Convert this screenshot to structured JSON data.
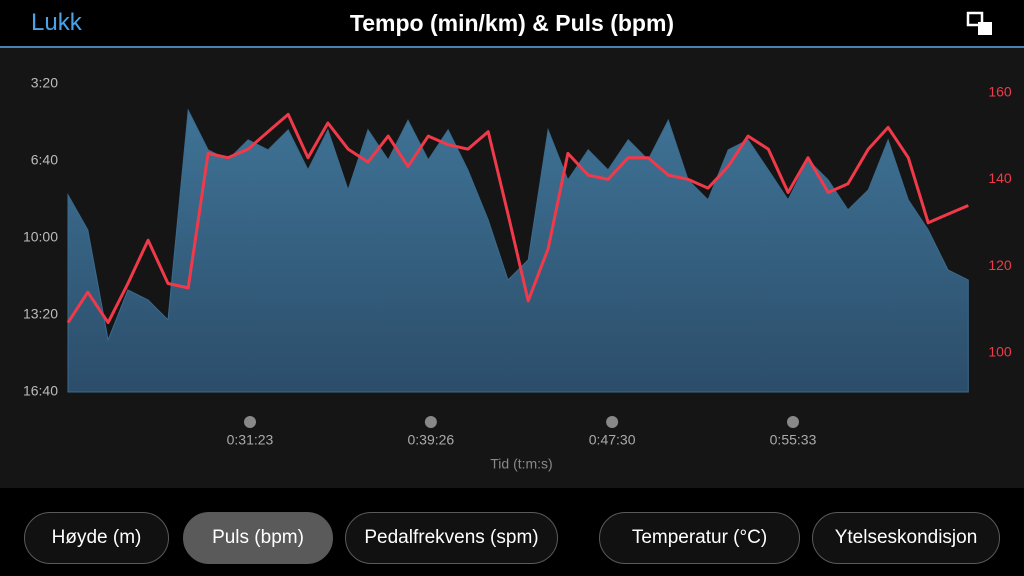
{
  "header": {
    "close": "Lukk",
    "title": "Tempo (min/km) & Puls (bpm)"
  },
  "chart_data": {
    "type": "area-line",
    "x_label": "Tid (t:m:s)",
    "x": [
      1397,
      1450,
      1504,
      1557,
      1611,
      1664,
      1718,
      1771,
      1824,
      1878,
      1931,
      1985,
      2038,
      2091,
      2145,
      2198,
      2252,
      2305,
      2359,
      2412,
      2465,
      2519,
      2572,
      2626,
      2679,
      2732,
      2786,
      2839,
      2893,
      2946,
      3000,
      3053,
      3106,
      3160,
      3213,
      3267,
      3320,
      3373,
      3427,
      3480,
      3534,
      3587,
      3641,
      3694,
      3747,
      3801
    ],
    "xlim": [
      1397,
      3819
    ],
    "xticks": [
      {
        "value": 1883,
        "label": "0:31:23"
      },
      {
        "value": 2366,
        "label": "0:39:26"
      },
      {
        "value": 2850,
        "label": "0:47:30"
      },
      {
        "value": 3333,
        "label": "0:55:33"
      }
    ],
    "ylim": [
      1000,
      200
    ],
    "yticks": [
      {
        "value": 200,
        "label": "3:20"
      },
      {
        "value": 400,
        "label": "6:40"
      },
      {
        "value": 600,
        "label": "10:00"
      },
      {
        "value": 800,
        "label": "13:20"
      },
      {
        "value": 1000,
        "label": "16:40"
      }
    ],
    "y2lim": [
      91,
      162
    ],
    "y2ticks": [
      100,
      120,
      140,
      160
    ],
    "series": [
      {
        "color": "#3a6a8c",
        "values": [
          488,
          579,
          865,
          735,
          761,
          813,
          268,
          371,
          397,
          345,
          371,
          319,
          423,
          319,
          475,
          319,
          397,
          294,
          397,
          319,
          423,
          553,
          709,
          657,
          319,
          449,
          371,
          423,
          345,
          397,
          294,
          449,
          501,
          371,
          345,
          423,
          501,
          397,
          449,
          527,
          475,
          345,
          501,
          579,
          683,
          709
        ]
      },
      {
        "color": "#f03a4a",
        "axis": "y2",
        "values": [
          107,
          114,
          107,
          116,
          126,
          116,
          115,
          146,
          145,
          147,
          151,
          155,
          145,
          153,
          147,
          144,
          150,
          143,
          150,
          148,
          147,
          151,
          132,
          112,
          124,
          146,
          141,
          140,
          145,
          145,
          141,
          140,
          138,
          143,
          150,
          147,
          137,
          145,
          137,
          139,
          147,
          152,
          145,
          130,
          132,
          134
        ]
      }
    ]
  },
  "tabs": {
    "items": [
      "Høyde (m)",
      "Puls (bpm)",
      "Pedalfrekvens (spm)",
      "Temperatur (°C)",
      "Ytelseskondisjon"
    ],
    "selected": 1
  }
}
